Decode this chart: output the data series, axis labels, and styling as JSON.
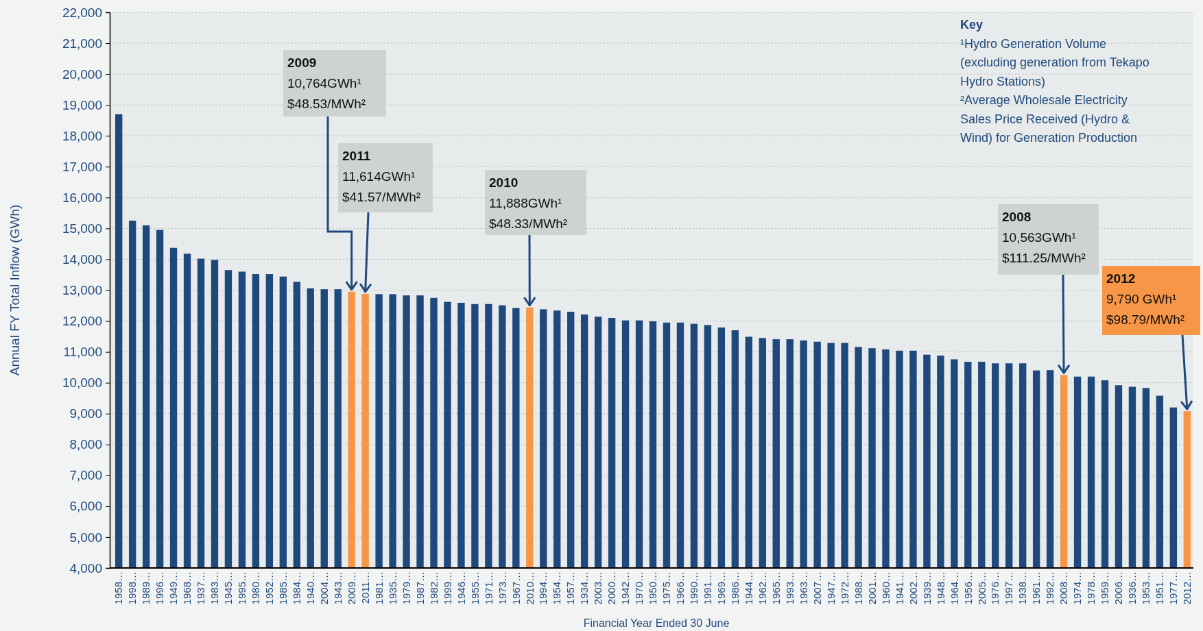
{
  "chart_data": {
    "type": "bar",
    "xlabel": "Financial Year Ended 30 June",
    "ylabel": "Annual FY Total Inflow (GWh)",
    "categories": [
      "1958…",
      "1998…",
      "1989…",
      "1996…",
      "1949…",
      "1968…",
      "1937…",
      "1983…",
      "1945…",
      "1995…",
      "1980…",
      "1952…",
      "1985…",
      "1984…",
      "1940…",
      "2004…",
      "1943…",
      "2009…",
      "2011…",
      "1981…",
      "1935…",
      "1979…",
      "1987…",
      "1982…",
      "1999…",
      "1946…",
      "1955…",
      "1971…",
      "1973…",
      "1967…",
      "2010…",
      "1994…",
      "1954…",
      "1957…",
      "1934…",
      "2003…",
      "2000…",
      "1942…",
      "1970…",
      "1950…",
      "1975…",
      "1966…",
      "1990…",
      "1991…",
      "1969…",
      "1986…",
      "1944…",
      "1962…",
      "1965…",
      "1993…",
      "1963…",
      "2007…",
      "1947…",
      "1972…",
      "1988…",
      "2001…",
      "1960…",
      "1941…",
      "2002…",
      "1939…",
      "1948…",
      "1964…",
      "1956…",
      "2005…",
      "1976…",
      "1997…",
      "1938…",
      "1961…",
      "1992…",
      "2008…",
      "1974…",
      "1978…",
      "1959…",
      "2006…",
      "1936…",
      "1953…",
      "1951…",
      "1977…",
      "2012…"
    ],
    "values": [
      18700,
      15250,
      15100,
      14950,
      14370,
      14180,
      14020,
      13980,
      13650,
      13600,
      13520,
      13520,
      13440,
      13270,
      13060,
      13030,
      13030,
      12950,
      12880,
      12870,
      12870,
      12830,
      12830,
      12750,
      12620,
      12590,
      12550,
      12550,
      12510,
      12420,
      12440,
      12380,
      12340,
      12300,
      12210,
      12140,
      12100,
      12020,
      12020,
      11990,
      11950,
      11950,
      11910,
      11870,
      11790,
      11700,
      11490,
      11450,
      11410,
      11410,
      11370,
      11330,
      11290,
      11290,
      11160,
      11120,
      11080,
      11040,
      11040,
      10910,
      10880,
      10760,
      10680,
      10680,
      10630,
      10630,
      10630,
      10400,
      10410,
      10250,
      10200,
      10200,
      10080,
      9920,
      9870,
      9830,
      9580,
      9200,
      9080
    ],
    "colors": [
      "#1f497d",
      "#1f497d",
      "#1f497d",
      "#1f497d",
      "#1f497d",
      "#1f497d",
      "#1f497d",
      "#1f497d",
      "#1f497d",
      "#1f497d",
      "#1f497d",
      "#1f497d",
      "#1f497d",
      "#1f497d",
      "#1f497d",
      "#1f497d",
      "#1f497d",
      "#f79646",
      "#f79646",
      "#1f497d",
      "#1f497d",
      "#1f497d",
      "#1f497d",
      "#1f497d",
      "#1f497d",
      "#1f497d",
      "#1f497d",
      "#1f497d",
      "#1f497d",
      "#1f497d",
      "#f79646",
      "#1f497d",
      "#1f497d",
      "#1f497d",
      "#1f497d",
      "#1f497d",
      "#1f497d",
      "#1f497d",
      "#1f497d",
      "#1f497d",
      "#1f497d",
      "#1f497d",
      "#1f497d",
      "#1f497d",
      "#1f497d",
      "#1f497d",
      "#1f497d",
      "#1f497d",
      "#1f497d",
      "#1f497d",
      "#1f497d",
      "#1f497d",
      "#1f497d",
      "#1f497d",
      "#1f497d",
      "#1f497d",
      "#1f497d",
      "#1f497d",
      "#1f497d",
      "#1f497d",
      "#1f497d",
      "#1f497d",
      "#1f497d",
      "#1f497d",
      "#1f497d",
      "#1f497d",
      "#1f497d",
      "#1f497d",
      "#1f497d",
      "#f79646",
      "#1f497d",
      "#1f497d",
      "#1f497d",
      "#1f497d",
      "#1f497d",
      "#1f497d",
      "#1f497d",
      "#1f497d",
      "#f79646"
    ],
    "ylim": [
      4000,
      22000
    ],
    "yticks": [
      {
        "value": 4000,
        "label": "4,000"
      },
      {
        "value": 5000,
        "label": "5,000"
      },
      {
        "value": 6000,
        "label": "6,000"
      },
      {
        "value": 7000,
        "label": "7,000"
      },
      {
        "value": 8000,
        "label": "8,000"
      },
      {
        "value": 9000,
        "label": "9,000"
      },
      {
        "value": 10000,
        "label": "10,000"
      },
      {
        "value": 11000,
        "label": "11,000"
      },
      {
        "value": 12000,
        "label": "12,000"
      },
      {
        "value": 13000,
        "label": "13,000"
      },
      {
        "value": 14000,
        "label": "14,000"
      },
      {
        "value": 15000,
        "label": "15,000"
      },
      {
        "value": 16000,
        "label": "16,000"
      },
      {
        "value": 17000,
        "label": "17,000"
      },
      {
        "value": 18000,
        "label": "18,000"
      },
      {
        "value": 19000,
        "label": "19,000"
      },
      {
        "value": 20000,
        "label": "20,000"
      },
      {
        "value": 21000,
        "label": "21,000"
      },
      {
        "value": 22000,
        "label": "22,000"
      }
    ],
    "grid": "y",
    "annotations": [
      {
        "text": "2009\n10,764GWh¹\n$48.53/MWh²",
        "x": "2009…",
        "y": 12950
      },
      {
        "text": "2011\n11,614GWh¹\n$41.57/MWh²",
        "x": "2011…",
        "y": 12880
      },
      {
        "text": "2010\n11,888GWh¹\n$48.33/MWh²",
        "x": "2010…",
        "y": 12440
      },
      {
        "text": "2008\n10,563GWh¹\n$111.25/MWh²",
        "x": "2008…",
        "y": 10250
      },
      {
        "text": "2012\n9,790 GWh¹\n$98.79/MWh²",
        "x": "2012…",
        "y": 9080
      },
      "Key\n¹Hydro Generation Volume\n(excluding generation from Tekapo\nHydro Stations)\n²Average Wholesale Electricity\nSales Price Received  (Hydro &\nWind) for Generation  Production"
    ]
  }
}
